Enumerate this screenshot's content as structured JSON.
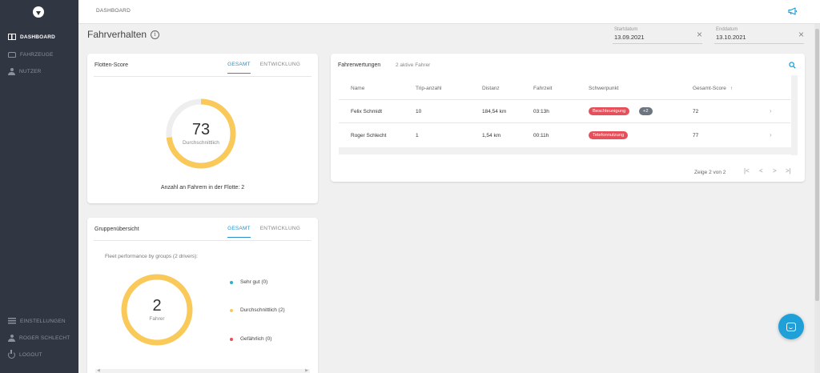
{
  "sidebar": {
    "items": [
      {
        "label": "DASHBOARD",
        "icon": "dashboard-icon"
      },
      {
        "label": "FAHRZEUGE",
        "icon": "car-icon"
      },
      {
        "label": "NUTZER",
        "icon": "user-icon"
      }
    ],
    "bottom_items": [
      {
        "label": "EINSTELLUNGEN",
        "icon": "settings-icon"
      },
      {
        "label": "ROGER SCHLECHT",
        "icon": "user-icon"
      },
      {
        "label": "LOGOUT",
        "icon": "logout-icon"
      }
    ]
  },
  "topbar": {
    "breadcrumb": "DASHBOARD",
    "announce_icon": "megaphone-icon"
  },
  "page": {
    "title": "Fahrverhalten",
    "info_icon": "info-icon"
  },
  "dates": {
    "start": {
      "label": "Startdatum",
      "value": "13.09.2021"
    },
    "end": {
      "label": "Enddatum",
      "value": "13.10.2021"
    },
    "clear_glyph": "×"
  },
  "fleet_score": {
    "title": "Flotten-Score",
    "tabs": [
      "GESAMT",
      "ENTWICKLUNG"
    ],
    "active_tab": 0,
    "score": "73",
    "score_label": "Durchschnittlich",
    "score_fraction": 0.73,
    "caption": "Anzahl an Fahrern in der Flotte: 2",
    "colors": {
      "arc": "#f9c95a",
      "track": "#eeeeee"
    }
  },
  "group_overview": {
    "title": "Gruppenübersicht",
    "tabs": [
      "GESAMT",
      "ENTWICKLUNG"
    ],
    "active_tab": 0,
    "description": "Fleet performance by groups (2 drivers):",
    "total": "2",
    "total_label": "Fahrer",
    "legend": [
      {
        "label": "Sehr gut (0)",
        "color": "#29b0c9"
      },
      {
        "label": "Durchschnittlich (2)",
        "color": "#f9c95a"
      },
      {
        "label": "Gefährlich (0)",
        "color": "#e5505b"
      }
    ]
  },
  "driver_ratings": {
    "title": "Fahrerwertungen",
    "subtitle": "2 aktive Fahrer",
    "columns": [
      "Name",
      "Trip-anzahl",
      "Distanz",
      "Fahrzeit",
      "Schwerpunkt",
      "Gesamt-Score"
    ],
    "sort_indicator": "↑",
    "rows": [
      {
        "name": "Felix Schmidt",
        "trips": "10",
        "distance": "184,54 km",
        "time": "03:13h",
        "focus": "Beschleunigung",
        "extra": "+2",
        "score": "72"
      },
      {
        "name": "Roger Schlecht",
        "trips": "1",
        "distance": "1,54 km",
        "time": "00:11h",
        "focus": "Telefonnutzung",
        "extra": "",
        "score": "77"
      }
    ],
    "pager_text": "Zeige 2 von 2",
    "pager_glyphs": {
      "first": "|<",
      "prev": "<",
      "next": ">",
      "last": ">|"
    }
  },
  "chat": {
    "icon": "chat-icon"
  }
}
